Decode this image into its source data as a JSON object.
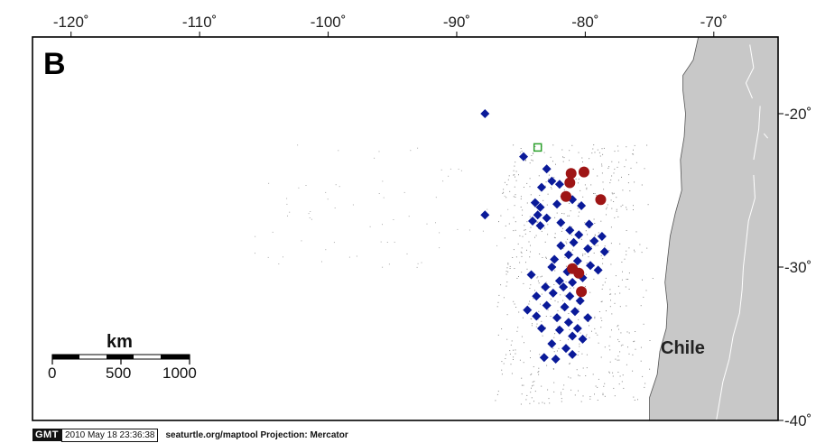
{
  "map": {
    "panel_label": "B",
    "projection": "Mercator",
    "extent": {
      "lon": [
        -123,
        -65
      ],
      "lat": [
        -40,
        -15
      ]
    },
    "lon_ticks": [
      {
        "value": -120,
        "label": "-120˚"
      },
      {
        "value": -110,
        "label": "-110˚"
      },
      {
        "value": -100,
        "label": "-100˚"
      },
      {
        "value": -90,
        "label": "-90˚"
      },
      {
        "value": -80,
        "label": "-80˚"
      },
      {
        "value": -70,
        "label": "-70˚"
      }
    ],
    "lat_ticks": [
      {
        "value": -20,
        "label": "-20˚"
      },
      {
        "value": -30,
        "label": "-30˚"
      },
      {
        "value": -40,
        "label": "-40˚"
      }
    ],
    "country_label": "Chile",
    "land_color": "#c8c8c8",
    "ocean_color": "#ffffff",
    "coast_polygon_lonlat": [
      [
        -71.2,
        -15.0
      ],
      [
        -71.6,
        -16.5
      ],
      [
        -72.4,
        -17.5
      ],
      [
        -72.4,
        -18.5
      ],
      [
        -72.2,
        -20.0
      ],
      [
        -72.3,
        -21.5
      ],
      [
        -72.6,
        -23.0
      ],
      [
        -72.5,
        -25.0
      ],
      [
        -73.0,
        -26.5
      ],
      [
        -73.4,
        -28.0
      ],
      [
        -73.6,
        -29.5
      ],
      [
        -73.8,
        -31.0
      ],
      [
        -73.6,
        -32.5
      ],
      [
        -73.7,
        -34.0
      ],
      [
        -74.2,
        -35.5
      ],
      [
        -74.4,
        -37.0
      ],
      [
        -75.0,
        -38.5
      ],
      [
        -75.0,
        -40.0
      ],
      [
        -65.0,
        -40.0
      ],
      [
        -65.0,
        -15.0
      ]
    ],
    "border_lines_lonlat": [
      [
        [
          -67.2,
          -15.5
        ],
        [
          -66.9,
          -17.0
        ],
        [
          -67.5,
          -18.0
        ],
        [
          -67.0,
          -19.0
        ]
      ],
      [
        [
          -66.4,
          -19.5
        ],
        [
          -66.5,
          -21.0
        ],
        [
          -66.9,
          -23.0
        ]
      ],
      [
        [
          -66.1,
          -21.3
        ],
        [
          -65.8,
          -21.6
        ]
      ],
      [
        [
          -66.9,
          -24.0
        ],
        [
          -66.8,
          -25.5
        ],
        [
          -67.3,
          -27.0
        ],
        [
          -67.5,
          -28.5
        ],
        [
          -67.7,
          -30.0
        ],
        [
          -67.8,
          -31.5
        ],
        [
          -68.0,
          -33.0
        ],
        [
          -68.5,
          -34.5
        ],
        [
          -68.8,
          -36.0
        ],
        [
          -69.3,
          -37.5
        ],
        [
          -69.6,
          -39.0
        ],
        [
          -69.8,
          -40.0
        ]
      ]
    ]
  },
  "scale_bar": {
    "title": "km",
    "labels": [
      "0",
      "500",
      "1000"
    ]
  },
  "markers": {
    "blue_diamond": {
      "color": "#0a1a99"
    },
    "red_circle": {
      "color": "#9e1515"
    },
    "green_square": {
      "color": "#2ba02b"
    },
    "blue_points": [
      [
        -87.8,
        -20.0
      ],
      [
        -84.8,
        -22.8
      ],
      [
        -83.0,
        -23.6
      ],
      [
        -82.6,
        -24.4
      ],
      [
        -83.4,
        -24.8
      ],
      [
        -82.0,
        -24.6
      ],
      [
        -81.6,
        -25.4
      ],
      [
        -82.2,
        -25.9
      ],
      [
        -81.0,
        -25.6
      ],
      [
        -80.3,
        -26.0
      ],
      [
        -83.9,
        -25.8
      ],
      [
        -83.5,
        -26.1
      ],
      [
        -83.7,
        -26.6
      ],
      [
        -84.1,
        -27.0
      ],
      [
        -83.5,
        -27.3
      ],
      [
        -83.0,
        -26.8
      ],
      [
        -87.8,
        -26.6
      ],
      [
        -81.9,
        -27.1
      ],
      [
        -81.2,
        -27.6
      ],
      [
        -80.5,
        -27.9
      ],
      [
        -79.7,
        -27.2
      ],
      [
        -79.3,
        -28.3
      ],
      [
        -78.7,
        -28.0
      ],
      [
        -79.8,
        -28.8
      ],
      [
        -81.3,
        -29.2
      ],
      [
        -80.6,
        -29.6
      ],
      [
        -79.6,
        -29.9
      ],
      [
        -78.5,
        -29.0
      ],
      [
        -79.0,
        -30.2
      ],
      [
        -82.6,
        -30.0
      ],
      [
        -81.4,
        -30.3
      ],
      [
        -80.2,
        -30.7
      ],
      [
        -82.0,
        -30.9
      ],
      [
        -81.7,
        -31.3
      ],
      [
        -81.0,
        -31.0
      ],
      [
        -82.5,
        -31.7
      ],
      [
        -81.2,
        -31.9
      ],
      [
        -80.4,
        -32.2
      ],
      [
        -81.6,
        -32.6
      ],
      [
        -80.8,
        -32.9
      ],
      [
        -84.2,
        -30.5
      ],
      [
        -83.1,
        -31.3
      ],
      [
        -83.8,
        -31.9
      ],
      [
        -83.0,
        -32.5
      ],
      [
        -84.5,
        -32.8
      ],
      [
        -82.2,
        -33.3
      ],
      [
        -81.3,
        -33.6
      ],
      [
        -80.6,
        -34.0
      ],
      [
        -81.0,
        -34.5
      ],
      [
        -82.0,
        -34.1
      ],
      [
        -83.4,
        -34.0
      ],
      [
        -79.8,
        -33.3
      ],
      [
        -80.2,
        -34.7
      ],
      [
        -82.6,
        -35.0
      ],
      [
        -81.5,
        -35.3
      ],
      [
        -83.2,
        -35.9
      ],
      [
        -82.3,
        -36.0
      ],
      [
        -81.0,
        -35.7
      ],
      [
        -83.8,
        -33.2
      ],
      [
        -81.9,
        -28.6
      ],
      [
        -80.9,
        -28.4
      ],
      [
        -82.4,
        -29.5
      ]
    ],
    "red_points": [
      [
        -81.1,
        -23.9
      ],
      [
        -81.2,
        -24.5
      ],
      [
        -80.1,
        -23.8
      ],
      [
        -81.5,
        -25.4
      ],
      [
        -78.8,
        -25.6
      ],
      [
        -80.5,
        -30.4
      ],
      [
        -80.3,
        -31.6
      ],
      [
        -81.0,
        -30.1
      ]
    ],
    "green_points": [
      [
        -83.7,
        -22.2
      ]
    ]
  },
  "footer": {
    "badge": "GMT",
    "timestamp": "2010 May 18 23:36:38",
    "credit": "seaturtle.org/maptool Projection: Mercator"
  }
}
